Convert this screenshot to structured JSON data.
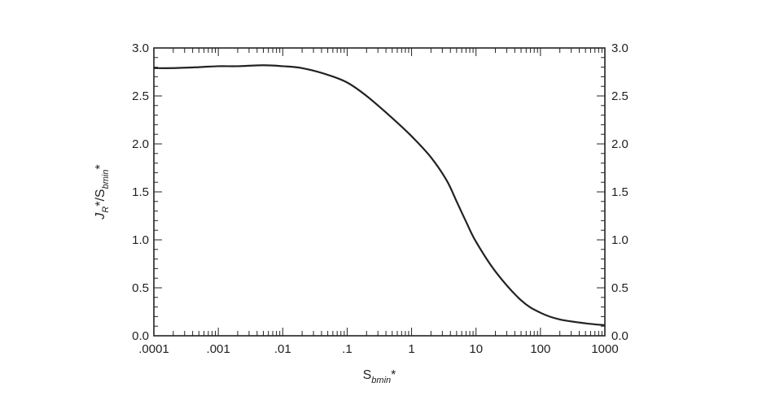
{
  "chart_data": {
    "type": "line",
    "title": "",
    "xlabel": {
      "base": "S",
      "sub": "bmin",
      "sup": "*"
    },
    "ylabel": {
      "parts": [
        {
          "text": "J",
          "italic": true
        },
        {
          "text": "R",
          "sub": true,
          "italic": true
        },
        {
          "text": "*/S"
        },
        {
          "text": "bmin",
          "sub": true,
          "italic": true
        },
        {
          "text": "*"
        }
      ]
    },
    "x_scale": "log",
    "xlim": [
      0.0001,
      1000
    ],
    "ylim": [
      0,
      3
    ],
    "x_ticks": [
      {
        "value": 0.0001,
        "label": ".0001"
      },
      {
        "value": 0.001,
        "label": ".001"
      },
      {
        "value": 0.01,
        "label": ".01"
      },
      {
        "value": 0.1,
        "label": ".1"
      },
      {
        "value": 1,
        "label": "1"
      },
      {
        "value": 10,
        "label": "10"
      },
      {
        "value": 100,
        "label": "100"
      },
      {
        "value": 1000,
        "label": "1000"
      }
    ],
    "y_ticks": [
      {
        "value": 0,
        "label": "0.0"
      },
      {
        "value": 0.5,
        "label": "0.5"
      },
      {
        "value": 1,
        "label": "1.0"
      },
      {
        "value": 1.5,
        "label": "1.5"
      },
      {
        "value": 2,
        "label": "2.0"
      },
      {
        "value": 2.5,
        "label": "2.5"
      },
      {
        "value": 3,
        "label": "3.0"
      }
    ],
    "y_right_ticks": true,
    "grid": false,
    "legend": "none",
    "series": [
      {
        "color": "#222222",
        "points": [
          [
            0.0001,
            2.79
          ],
          [
            0.0002,
            2.79
          ],
          [
            0.0005,
            2.8
          ],
          [
            0.001,
            2.81
          ],
          [
            0.002,
            2.81
          ],
          [
            0.005,
            2.82
          ],
          [
            0.01,
            2.81
          ],
          [
            0.02,
            2.79
          ],
          [
            0.05,
            2.72
          ],
          [
            0.1,
            2.64
          ],
          [
            0.2,
            2.5
          ],
          [
            0.5,
            2.27
          ],
          [
            1,
            2.08
          ],
          [
            2,
            1.86
          ],
          [
            3.5,
            1.62
          ],
          [
            5,
            1.4
          ],
          [
            7,
            1.19
          ],
          [
            10,
            0.98
          ],
          [
            20,
            0.67
          ],
          [
            50,
            0.37
          ],
          [
            100,
            0.24
          ],
          [
            200,
            0.17
          ],
          [
            500,
            0.13
          ],
          [
            1000,
            0.11
          ]
        ]
      }
    ]
  }
}
